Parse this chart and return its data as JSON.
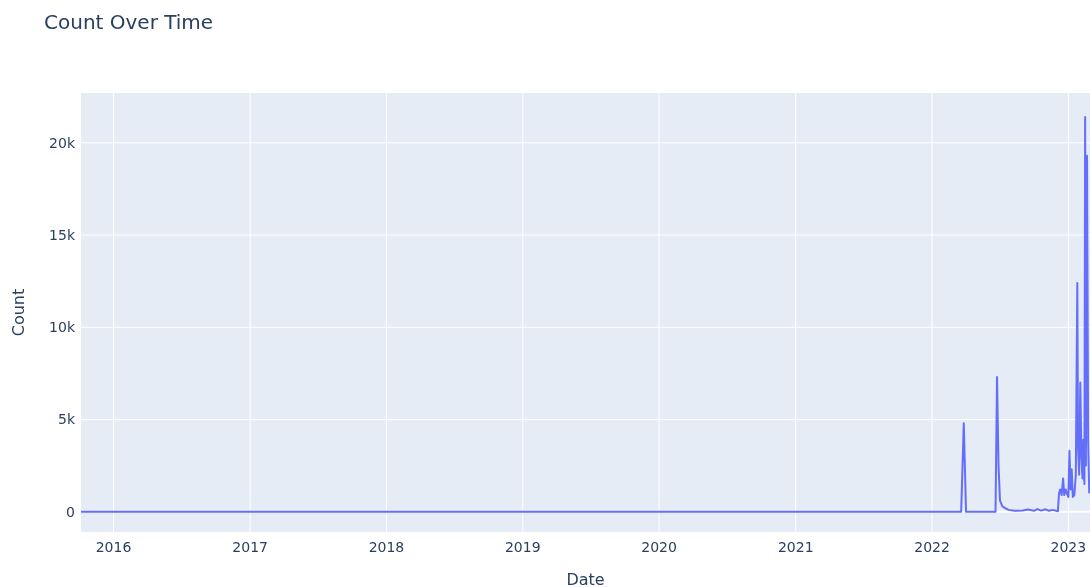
{
  "chart_data": {
    "type": "line",
    "title": "Count Over Time",
    "xlabel": "Date",
    "ylabel": "Count",
    "xlim": [
      "2015-10-06",
      "2023-02-28"
    ],
    "xticks": [
      {
        "value": "2016-01-01",
        "label": "2016"
      },
      {
        "value": "2017-01-01",
        "label": "2017"
      },
      {
        "value": "2018-01-01",
        "label": "2018"
      },
      {
        "value": "2019-01-01",
        "label": "2019"
      },
      {
        "value": "2020-01-01",
        "label": "2020"
      },
      {
        "value": "2021-01-01",
        "label": "2021"
      },
      {
        "value": "2022-01-01",
        "label": "2022"
      },
      {
        "value": "2023-01-01",
        "label": "2023"
      }
    ],
    "ylim": [
      -1100,
      22700
    ],
    "yticks": [
      0,
      {
        "value": 5000,
        "label": "5k"
      },
      {
        "value": 10000,
        "label": "10k"
      },
      {
        "value": 15000,
        "label": "15k"
      },
      {
        "value": 20000,
        "label": "20k"
      }
    ],
    "grid": true,
    "series": [
      {
        "color": "#636efa",
        "x": [
          "2015-10-06",
          "2022-03-20",
          "2022-03-27",
          "2022-04-02",
          "2022-06-20",
          "2022-06-24",
          "2022-06-28",
          "2022-07-02",
          "2022-07-08",
          "2022-07-15",
          "2022-07-25",
          "2022-08-10",
          "2022-09-01",
          "2022-09-15",
          "2022-10-01",
          "2022-10-10",
          "2022-10-20",
          "2022-11-01",
          "2022-11-10",
          "2022-11-20",
          "2022-12-04",
          "2022-12-07",
          "2022-12-10",
          "2022-12-14",
          "2022-12-18",
          "2022-12-21",
          "2022-12-25",
          "2022-12-28",
          "2023-01-01",
          "2023-01-04",
          "2023-01-07",
          "2023-01-10",
          "2023-01-13",
          "2023-01-17",
          "2023-01-21",
          "2023-01-25",
          "2023-01-27",
          "2023-01-30",
          "2023-02-02",
          "2023-02-05",
          "2023-02-08",
          "2023-02-10",
          "2023-02-13",
          "2023-02-15",
          "2023-02-17",
          "2023-02-20",
          "2023-02-23",
          "2023-02-26"
        ],
        "values": [
          0,
          0,
          4800,
          0,
          0,
          7300,
          2500,
          600,
          300,
          200,
          100,
          50,
          60,
          120,
          50,
          140,
          60,
          130,
          50,
          100,
          30,
          1000,
          1200,
          900,
          1800,
          900,
          1200,
          1000,
          800,
          3300,
          1200,
          2300,
          800,
          900,
          2000,
          12400,
          3500,
          2000,
          7000,
          3000,
          1800,
          3900,
          1500,
          21400,
          2500,
          19300,
          3800,
          1000
        ]
      }
    ]
  }
}
